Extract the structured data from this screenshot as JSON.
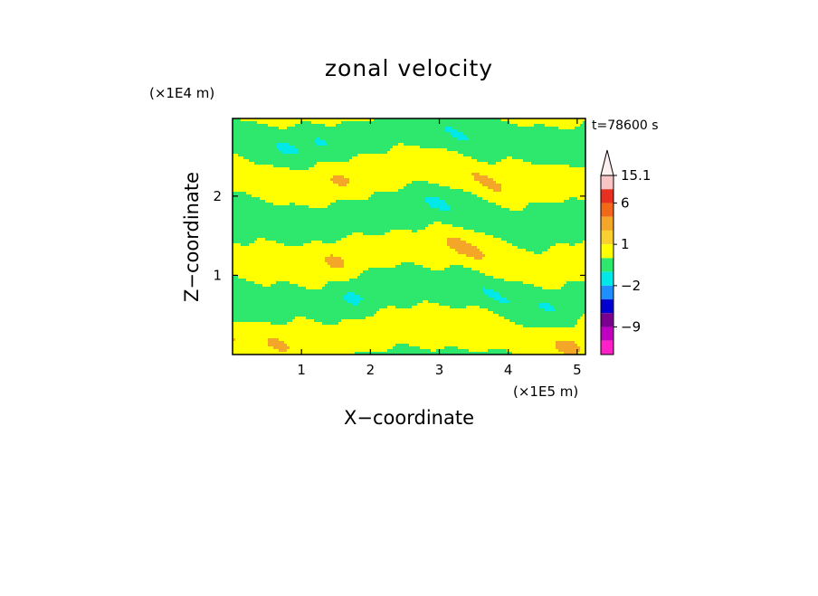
{
  "chart_data": {
    "type": "heatmap",
    "title": "zonal velocity",
    "xlabel": "X−coordinate",
    "ylabel": "Z−coordinate",
    "x_unit": "(×1E5 m)",
    "y_unit": "(×1E4 m)",
    "time_label": "t=78600 s",
    "xlim": [
      0,
      5.12
    ],
    "ylim": [
      0,
      2.98
    ],
    "x_ticks": [
      "1",
      "2",
      "3",
      "4",
      "5"
    ],
    "y_ticks": [
      "1",
      "2"
    ],
    "colorbar": {
      "labels": [
        "15.1",
        "6",
        "1",
        "−2",
        "−9"
      ],
      "label_values": [
        15.1,
        6,
        1,
        -2,
        -9
      ],
      "levels": [
        {
          "value": 15.1,
          "color": "#fdf0f0"
        },
        {
          "value": 12,
          "color": "#f9c4c4"
        },
        {
          "value": 8,
          "color": "#e83020"
        },
        {
          "value": 5,
          "color": "#f06818"
        },
        {
          "value": 2.5,
          "color": "#f4a628"
        },
        {
          "value": 1.5,
          "color": "#fad030"
        },
        {
          "value": 0.5,
          "color": "#ffff00"
        },
        {
          "value": -0.5,
          "color": "#2ee86e"
        },
        {
          "value": -1.5,
          "color": "#00e8e8"
        },
        {
          "value": -3,
          "color": "#1f8fff"
        },
        {
          "value": -5,
          "color": "#0000d0"
        },
        {
          "value": -7,
          "color": "#7a0090"
        },
        {
          "value": -10,
          "color": "#c000c0"
        },
        {
          "value": -13,
          "color": "#ff20c8"
        }
      ]
    },
    "field_colors": {
      "positive": "#ffff00",
      "negative": "#2ee86e",
      "strong_positive": "#f4a628",
      "strong_negative": "#00e8e8",
      "extreme_positive": "#e83020",
      "extreme_negative": "#0000d0"
    }
  }
}
